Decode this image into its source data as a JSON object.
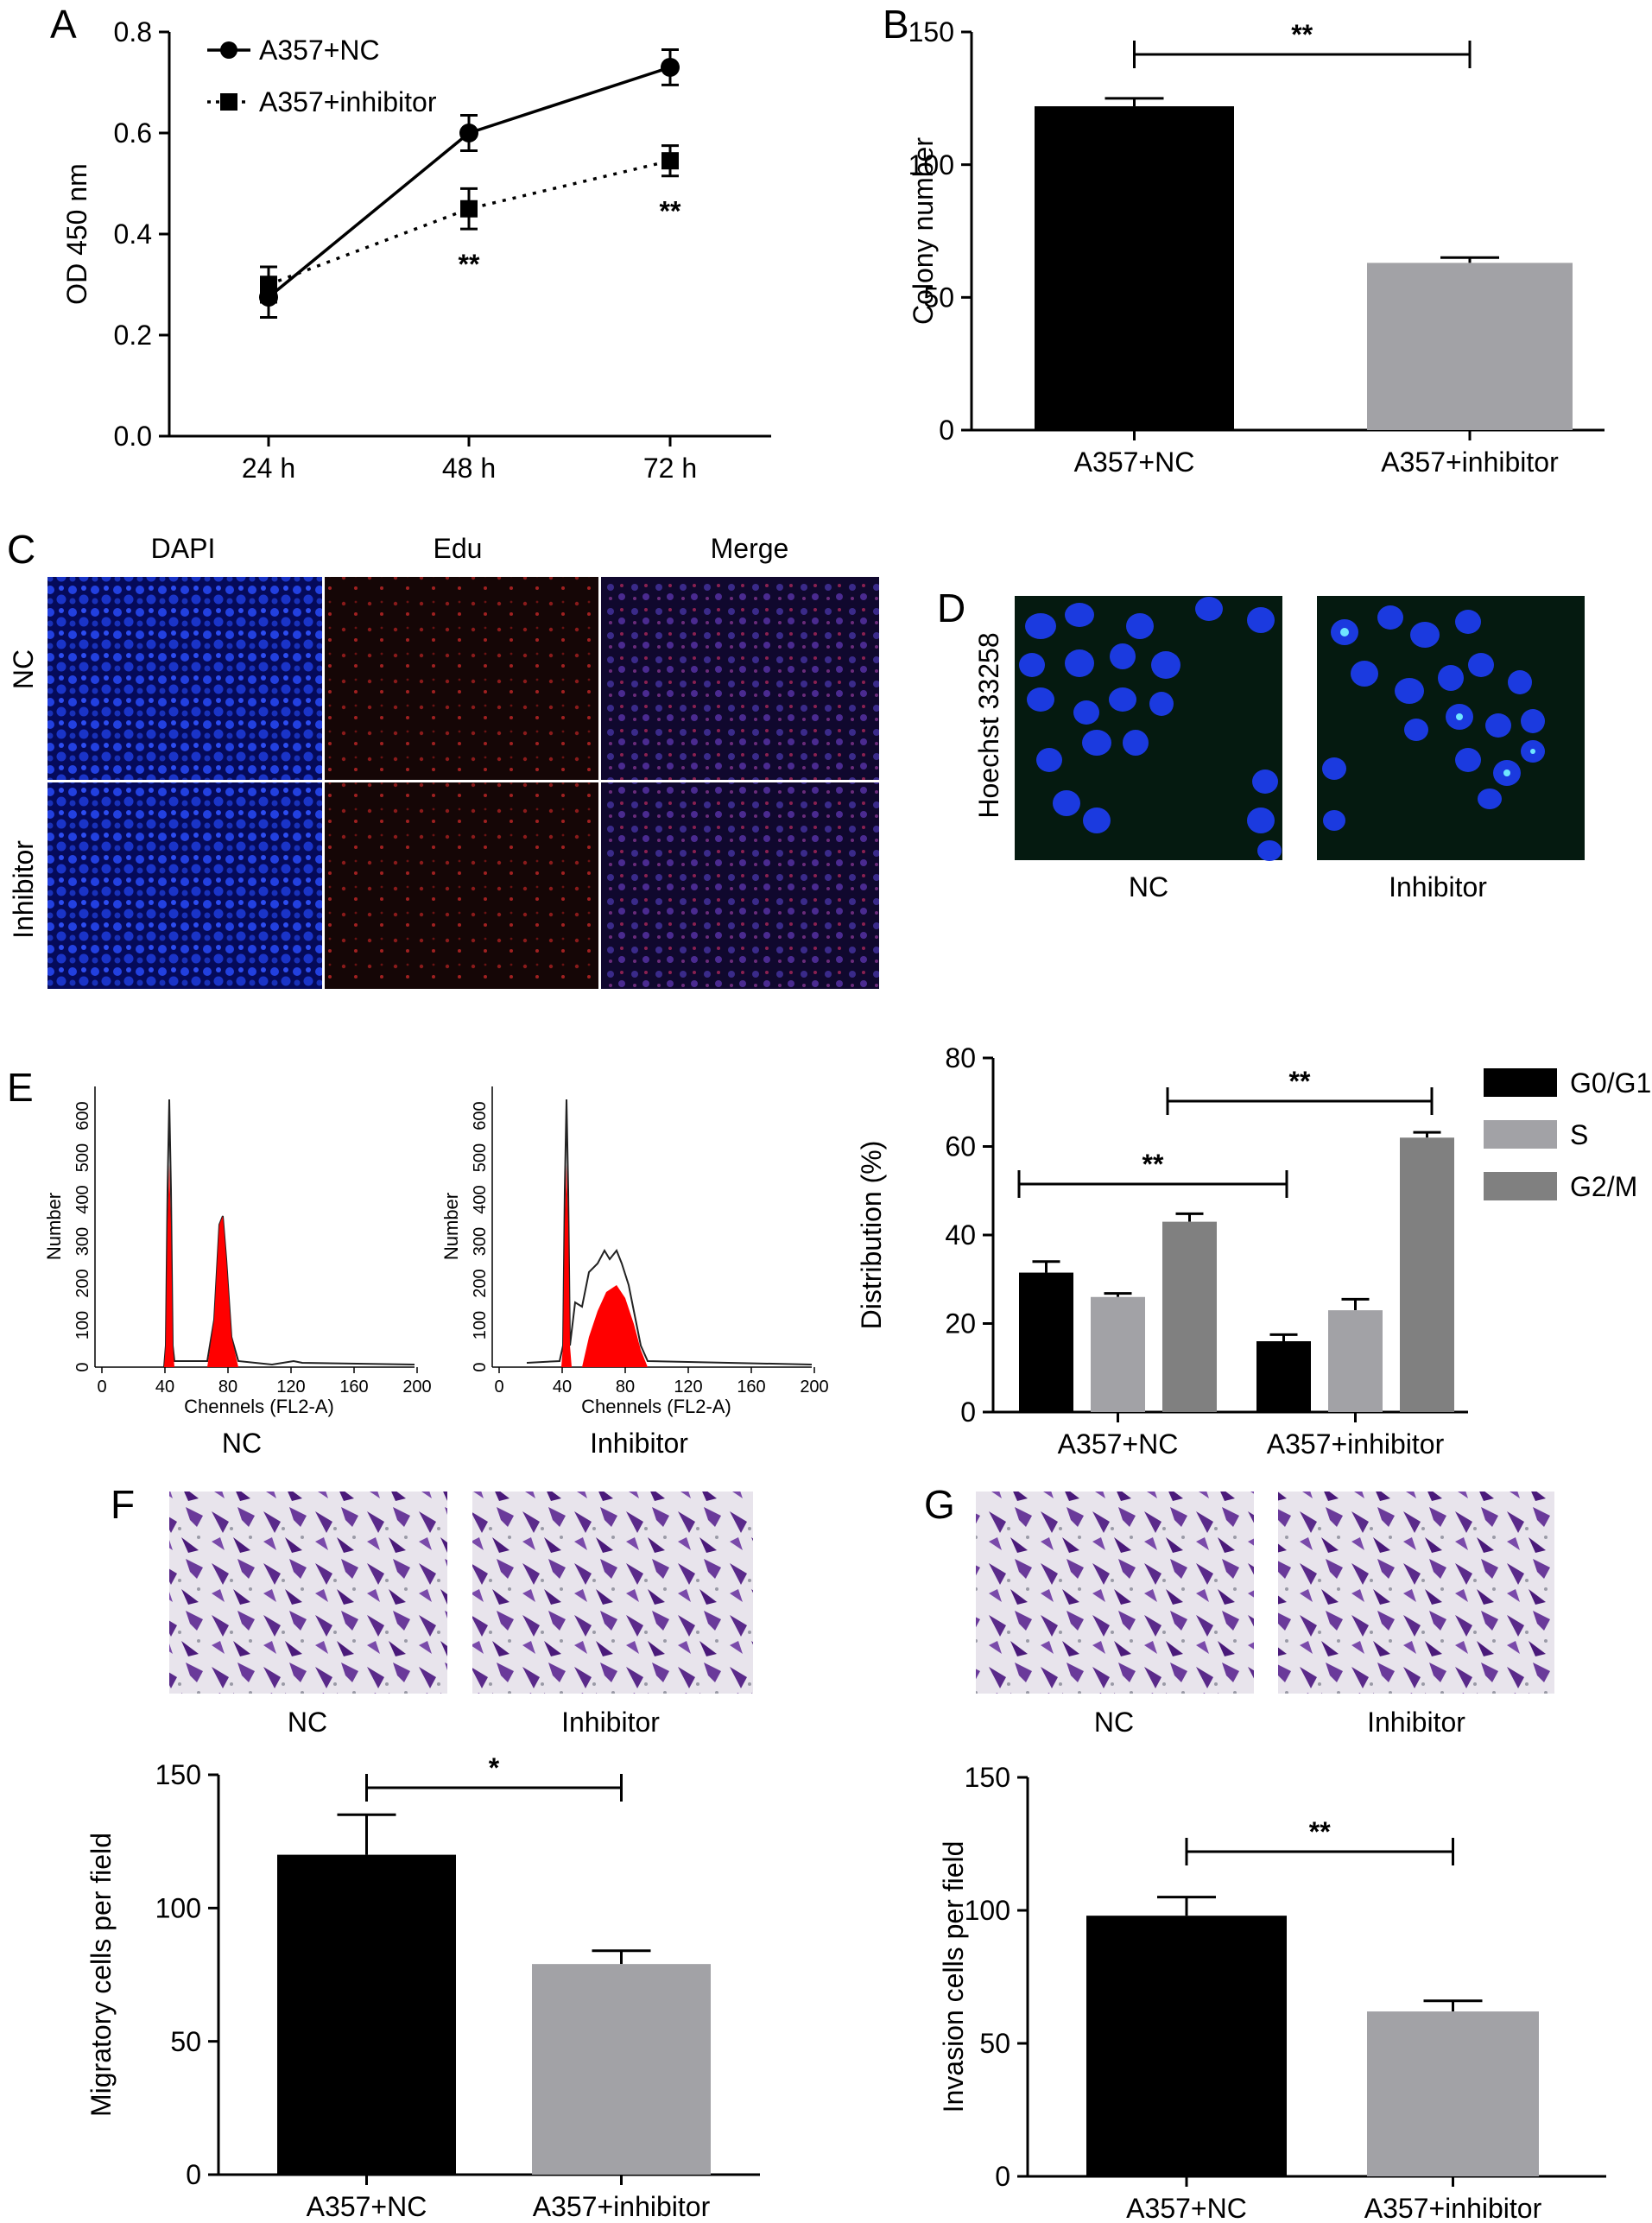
{
  "panels": {
    "A": "A",
    "B": "B",
    "C": "C",
    "D": "D",
    "E": "E",
    "F": "F",
    "G": "G"
  },
  "colors": {
    "black": "#000000",
    "light_gray": "#a2a2a6",
    "mid_gray": "#808080",
    "nuclei_blue": "#1b3adf",
    "edu_red": "#b01818",
    "histo_red": "#ff0000",
    "crystal_violet": "#5a2a8a"
  },
  "chart_data": [
    {
      "id": "A",
      "type": "line",
      "x": [
        "24 h",
        "48 h",
        "72 h"
      ],
      "ylabel": "OD 450 nm",
      "ylim": [
        0,
        0.8
      ],
      "yticks": [
        "0.0",
        "0.2",
        "0.4",
        "0.6",
        "0.8"
      ],
      "series": [
        {
          "name": "A357+NC",
          "values": [
            0.275,
            0.6,
            0.73
          ],
          "errors": [
            0.04,
            0.035,
            0.035
          ],
          "marker": "circle",
          "line": "solid"
        },
        {
          "name": "A357+inhibitor",
          "values": [
            0.3,
            0.45,
            0.545
          ],
          "errors": [
            0.035,
            0.04,
            0.03
          ],
          "marker": "square",
          "line": "dotted"
        }
      ],
      "annotations": [
        "**",
        "**"
      ],
      "legend_position": "top-left"
    },
    {
      "id": "B",
      "type": "bar",
      "categories": [
        "A357+NC",
        "A357+inhibitor"
      ],
      "values": [
        122,
        63
      ],
      "errors": [
        3,
        2
      ],
      "ylabel": "Colony number",
      "ylim": [
        0,
        150
      ],
      "yticks": [
        "0",
        "50",
        "100",
        "150"
      ],
      "bracket": "**"
    },
    {
      "id": "E",
      "type": "bar",
      "categories": [
        "A357+NC",
        "A357+inhibitor"
      ],
      "series": [
        {
          "name": "G0/G1",
          "values": [
            31.5,
            16
          ],
          "errors": [
            2.5,
            1.5
          ]
        },
        {
          "name": "S",
          "values": [
            26,
            23
          ],
          "errors": [
            0.8,
            2.5
          ]
        },
        {
          "name": "G2/M",
          "values": [
            43,
            62
          ],
          "errors": [
            1.8,
            1.2
          ]
        }
      ],
      "ylabel": "Distribution (%)",
      "ylim": [
        0,
        80
      ],
      "yticks": [
        "0",
        "20",
        "40",
        "60",
        "80"
      ],
      "brackets": [
        "**",
        "**"
      ],
      "legend_position": "right"
    },
    {
      "id": "F",
      "type": "bar",
      "categories": [
        "A357+NC",
        "A357+inhibitor"
      ],
      "values": [
        120,
        79
      ],
      "errors": [
        15,
        5
      ],
      "ylabel": "Migratory cells per field",
      "ylim": [
        0,
        150
      ],
      "yticks": [
        "0",
        "50",
        "100",
        "150"
      ],
      "bracket": "*"
    },
    {
      "id": "G",
      "type": "bar",
      "categories": [
        "A357+NC",
        "A357+inhibitor"
      ],
      "values": [
        98,
        62
      ],
      "errors": [
        7,
        4
      ],
      "ylabel": "Invasion cells per field",
      "ylim": [
        0,
        150
      ],
      "yticks": [
        "0",
        "50",
        "100",
        "150"
      ],
      "bracket": "**"
    }
  ],
  "microscopy_C": {
    "columns": [
      "DAPI",
      "Edu",
      "Merge"
    ],
    "rows": [
      "NC",
      "Inhibitor"
    ]
  },
  "microscopy_D": {
    "ylabel": "Hoechst 33258",
    "captions": [
      "NC",
      "Inhibitor"
    ]
  },
  "histograms_E": {
    "ylabel": "Number",
    "xlabel": "Chennels (FL2-A)",
    "xticks": [
      "0",
      "40",
      "80",
      "120",
      "160",
      "200"
    ],
    "yticks": [
      "0",
      "100",
      "200",
      "300",
      "400",
      "500",
      "600"
    ],
    "captions": [
      "NC",
      "Inhibitor"
    ]
  },
  "microscopy_F": {
    "captions": [
      "NC",
      "Inhibitor"
    ]
  },
  "microscopy_G": {
    "captions": [
      "NC",
      "Inhibitor"
    ]
  }
}
